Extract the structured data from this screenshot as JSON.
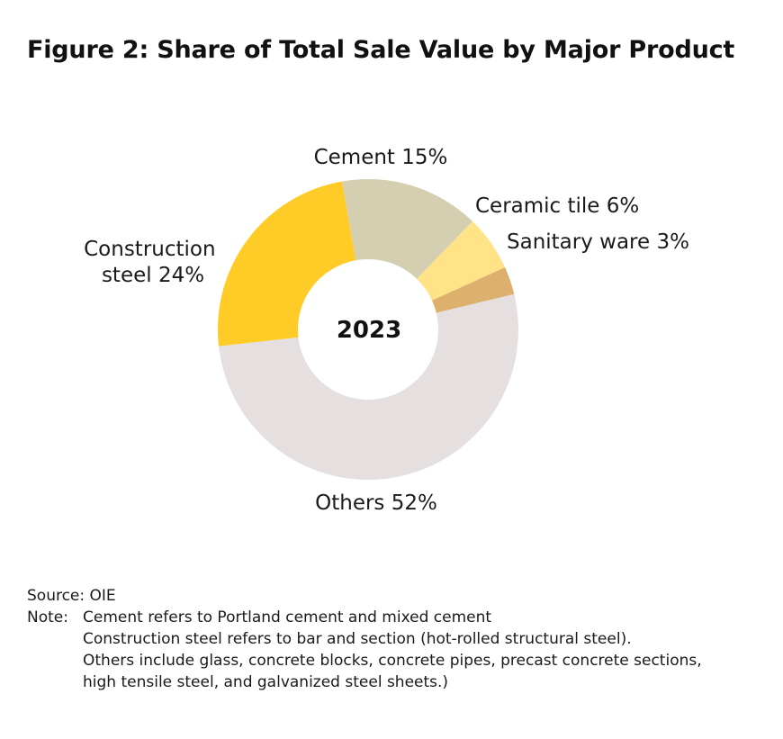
{
  "title": "Figure 2: Share of Total Sale Value by Major Product",
  "chart_data": {
    "type": "pie",
    "variant": "donut",
    "center_label": "2023",
    "slices": [
      {
        "label": "Others 52%",
        "name": "Others",
        "value": 52,
        "color": "#E6DFDF"
      },
      {
        "label": "Construction steel 24%",
        "name": "Construction steel",
        "value": 24,
        "color": "#FFCB27"
      },
      {
        "label": "Cement 15%",
        "name": "Cement",
        "value": 15,
        "color": "#D5CFB1"
      },
      {
        "label": "Ceramic tile 6%",
        "name": "Ceramic tile",
        "value": 6,
        "color": "#FFE386"
      },
      {
        "label": "Sanitary ware 3%",
        "name": "Sanitary ware",
        "value": 3,
        "color": "#DDB06E"
      }
    ]
  },
  "source": "Source: OIE",
  "note_head": "Note:",
  "notes": [
    "Cement refers to Portland cement and mixed cement",
    "Construction steel refers to bar and section (hot-rolled structural steel).",
    "Others include glass, concrete blocks, concrete pipes, precast concrete sections,",
    "high tensile steel, and galvanized steel sheets.)"
  ]
}
